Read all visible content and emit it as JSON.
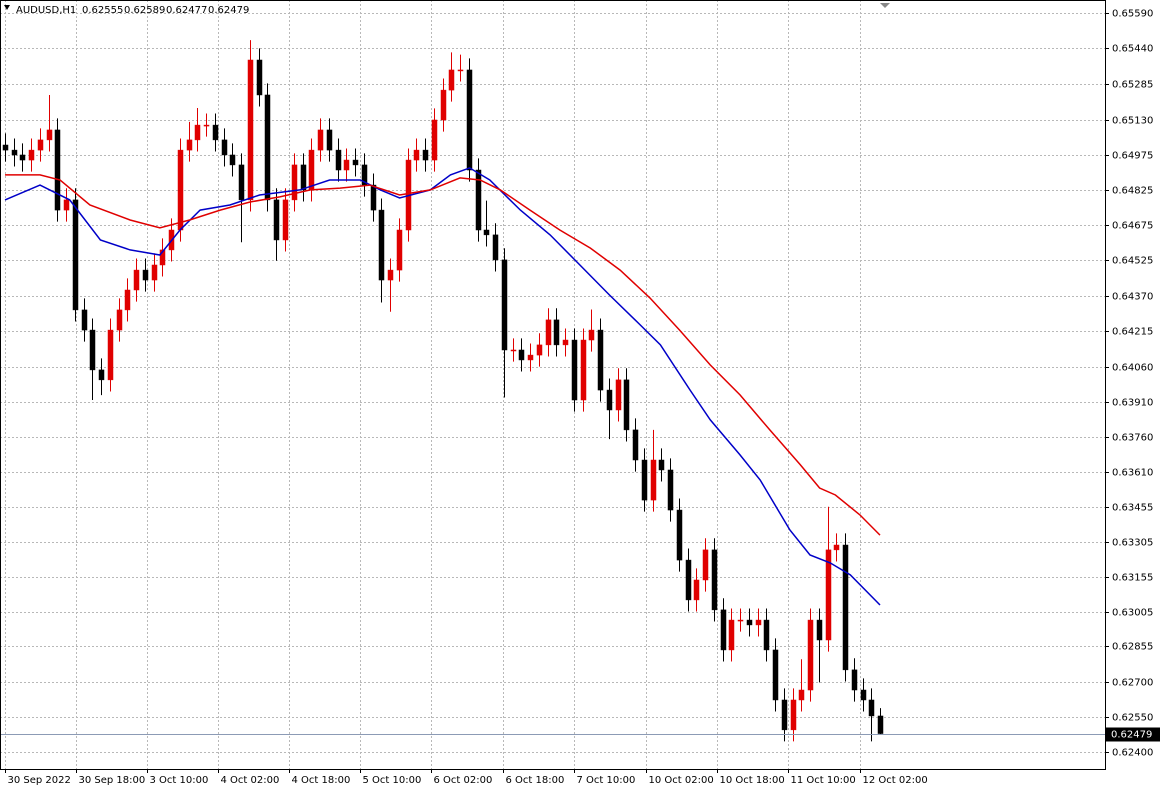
{
  "chart_data": {
    "type": "candlestick",
    "symbol": "AUDUSD,H1",
    "up_color": "#e00000",
    "down_color": "#000000",
    "grid": true,
    "xlim": [
      -0.57,
      125.71
    ],
    "xticks": [
      {
        "value": 0,
        "label": "30 Sep 2022"
      },
      {
        "value": 8.1,
        "label": "30 Sep 18:00"
      },
      {
        "value": 16.2,
        "label": "3 Oct 10:00"
      },
      {
        "value": 24.3,
        "label": "4 Oct 02:00"
      },
      {
        "value": 32.5,
        "label": "4 Oct 18:00"
      },
      {
        "value": 40.6,
        "label": "5 Oct 10:00"
      },
      {
        "value": 48.7,
        "label": "6 Oct 02:00"
      },
      {
        "value": 56.9,
        "label": "6 Oct 18:00"
      },
      {
        "value": 65,
        "label": "7 Oct 10:00"
      },
      {
        "value": 73.3,
        "label": "10 Oct 02:00"
      },
      {
        "value": 81.4,
        "label": "10 Oct 18:00"
      },
      {
        "value": 89.5,
        "label": "11 Oct 10:00"
      },
      {
        "value": 97.7,
        "label": "12 Oct 02:00"
      }
    ],
    "ylim": [
      0.62326,
      0.65646
    ],
    "yticks": [
      {
        "value": 0.6559,
        "label": "0.65590"
      },
      {
        "value": 0.6544,
        "label": "0.65440"
      },
      0.65285,
      {
        "value": 0.6513,
        "label": "0.65130"
      },
      0.64975,
      0.64825,
      0.64675,
      0.64525,
      {
        "value": 0.6437,
        "label": "0.64370"
      },
      0.64215,
      {
        "value": 0.6406,
        "label": "0.64060"
      },
      {
        "value": 0.6391,
        "label": "0.63910"
      },
      {
        "value": 0.6376,
        "label": "0.63760"
      },
      {
        "value": 0.6361,
        "label": "0.63610"
      },
      0.63455,
      0.63305,
      0.63155,
      0.63005,
      0.62855,
      {
        "value": 0.627,
        "label": "0.62700"
      },
      {
        "value": 0.6255,
        "label": "0.62550"
      },
      {
        "value": 0.624,
        "label": "0.62400"
      }
    ],
    "candles": {
      "open": [
        0.6502,
        0.64998,
        0.64977,
        0.64955,
        0.64998,
        0.65042,
        0.65085,
        0.64739,
        0.64783,
        0.64308,
        0.64221,
        0.64049,
        0.64006,
        0.64221,
        0.64308,
        0.64394,
        0.6448,
        0.64437,
        0.64502,
        0.64567,
        0.64653,
        0.64998,
        0.65042,
        0.65106,
        0.65106,
        0.65042,
        0.64977,
        0.64934,
        0.64783,
        0.65387,
        0.65236,
        0.64783,
        0.6461,
        0.64783,
        0.64934,
        0.64826,
        0.64998,
        0.65085,
        0.64998,
        0.64912,
        0.64955,
        0.64934,
        0.64847,
        0.64739,
        0.64437,
        0.6448,
        0.64653,
        0.64955,
        0.64998,
        0.64955,
        0.65128,
        0.65257,
        0.65344,
        0.65344,
        0.64912,
        0.64653,
        0.64632,
        0.64524,
        0.64135,
        0.64135,
        0.64092,
        0.64113,
        0.64157,
        0.64265,
        0.64157,
        0.64178,
        0.63919,
        0.64178,
        0.64221,
        0.63962,
        0.63876,
        0.64006,
        0.6379,
        0.6366,
        0.63487,
        0.6366,
        0.63617,
        0.63444,
        0.63228,
        0.63056,
        0.63142,
        0.63272,
        0.63013,
        0.6284,
        0.62969,
        0.62969,
        0.62948,
        0.62969,
        0.6284,
        0.62624,
        0.62495,
        0.62624,
        0.62667,
        0.62969,
        0.62883,
        0.63272,
        0.63293,
        0.62754,
        0.62667,
        0.62624,
        0.62555
      ],
      "high": [
        0.6507,
        0.65048,
        0.65027,
        0.65048,
        0.65092,
        0.65236,
        0.65135,
        0.64833,
        0.64833,
        0.64358,
        0.64271,
        0.64099,
        0.64271,
        0.64358,
        0.64444,
        0.6453,
        0.6453,
        0.64552,
        0.64617,
        0.64703,
        0.65048,
        0.6512,
        0.6518,
        0.65156,
        0.65156,
        0.65092,
        0.65027,
        0.64984,
        0.65473,
        0.65437,
        0.65286,
        0.64833,
        0.64833,
        0.64984,
        0.64984,
        0.65048,
        0.65135,
        0.65135,
        0.65048,
        0.65005,
        0.65005,
        0.64984,
        0.64897,
        0.64789,
        0.6453,
        0.64703,
        0.65005,
        0.65048,
        0.65048,
        0.65178,
        0.65307,
        0.6542,
        0.6541,
        0.65394,
        0.64962,
        0.6478,
        0.64682,
        0.64574,
        0.64185,
        0.64185,
        0.64163,
        0.64207,
        0.64315,
        0.64315,
        0.64228,
        0.64228,
        0.64228,
        0.6431,
        0.64271,
        0.64012,
        0.64056,
        0.64056,
        0.6384,
        0.6371,
        0.6379,
        0.6371,
        0.63667,
        0.63494,
        0.63278,
        0.63192,
        0.63322,
        0.63322,
        0.63063,
        0.63019,
        0.63019,
        0.63019,
        0.63019,
        0.63019,
        0.6289,
        0.62674,
        0.62674,
        0.628,
        0.63019,
        0.63019,
        0.63458,
        0.63343,
        0.63343,
        0.62804,
        0.62717,
        0.62674,
        0.62589
      ],
      "low": [
        0.64948,
        0.64927,
        0.64905,
        0.64905,
        0.64948,
        0.64992,
        0.64689,
        0.64689,
        0.64258,
        0.64171,
        0.63919,
        0.6394,
        0.63956,
        0.64171,
        0.64258,
        0.64344,
        0.64387,
        0.64387,
        0.64452,
        0.64517,
        0.64603,
        0.64948,
        0.64992,
        0.65056,
        0.64992,
        0.64927,
        0.64884,
        0.646,
        0.64733,
        0.65186,
        0.64733,
        0.6452,
        0.6456,
        0.64733,
        0.64776,
        0.64776,
        0.64948,
        0.64948,
        0.64862,
        0.64862,
        0.64884,
        0.64797,
        0.64689,
        0.6434,
        0.643,
        0.6443,
        0.64603,
        0.64905,
        0.64905,
        0.64905,
        0.65078,
        0.65207,
        0.65294,
        0.64862,
        0.64603,
        0.64582,
        0.64474,
        0.6393,
        0.64085,
        0.64042,
        0.64042,
        0.64063,
        0.64107,
        0.64107,
        0.64107,
        0.63869,
        0.63869,
        0.64128,
        0.63912,
        0.6375,
        0.63826,
        0.6374,
        0.6361,
        0.63437,
        0.63437,
        0.63567,
        0.63394,
        0.63178,
        0.63006,
        0.63006,
        0.63092,
        0.62963,
        0.6279,
        0.6279,
        0.62919,
        0.62898,
        0.62898,
        0.6279,
        0.62574,
        0.62445,
        0.62445,
        0.62574,
        0.62617,
        0.627,
        0.62833,
        0.63222,
        0.62704,
        0.62617,
        0.62574,
        0.62445,
        0.62477
      ],
      "close": [
        0.64998,
        0.64977,
        0.64955,
        0.64998,
        0.65042,
        0.65085,
        0.64739,
        0.64783,
        0.64308,
        0.64221,
        0.64049,
        0.64006,
        0.64221,
        0.64308,
        0.64394,
        0.6448,
        0.64437,
        0.64502,
        0.64567,
        0.64653,
        0.64998,
        0.65042,
        0.65106,
        0.65106,
        0.65042,
        0.64977,
        0.64934,
        0.64783,
        0.65387,
        0.65236,
        0.64783,
        0.6461,
        0.64783,
        0.64934,
        0.64826,
        0.64998,
        0.65085,
        0.64998,
        0.64912,
        0.64955,
        0.64934,
        0.64847,
        0.64739,
        0.64437,
        0.6448,
        0.64653,
        0.64955,
        0.64998,
        0.64955,
        0.65128,
        0.65257,
        0.65344,
        0.65344,
        0.64912,
        0.64653,
        0.64632,
        0.64524,
        0.64135,
        0.64135,
        0.64092,
        0.64113,
        0.64157,
        0.64265,
        0.64157,
        0.64178,
        0.63919,
        0.64178,
        0.64221,
        0.63962,
        0.63876,
        0.64006,
        0.6379,
        0.6366,
        0.63487,
        0.6366,
        0.63617,
        0.63444,
        0.63228,
        0.63056,
        0.63142,
        0.63272,
        0.63013,
        0.6284,
        0.62969,
        0.62969,
        0.62948,
        0.62969,
        0.6284,
        0.62624,
        0.62495,
        0.62624,
        0.62667,
        0.62969,
        0.62883,
        0.63272,
        0.63293,
        0.62754,
        0.62667,
        0.62624,
        0.62555,
        0.62479
      ]
    },
    "series": [
      {
        "color": "#0000c8",
        "x": [
          0,
          4,
          7.4,
          10.9,
          14.3,
          17.7,
          20,
          22.3,
          25.7,
          29.1,
          33.7,
          37.1,
          40.6,
          42.9,
          45.1,
          48.6,
          50.9,
          53.1,
          55.4,
          58.9,
          62.3,
          65.7,
          69.1,
          72.6,
          74.9,
          78.3,
          80.6,
          84,
          86.3,
          89.7,
          92,
          94.3,
          96.6,
          100
        ],
        "values": [
          0.64783,
          0.64847,
          0.64783,
          0.6461,
          0.64567,
          0.64545,
          0.64653,
          0.64739,
          0.64761,
          0.64804,
          0.64826,
          0.64869,
          0.64869,
          0.64826,
          0.64791,
          0.64826,
          0.64891,
          0.64921,
          0.64869,
          0.64739,
          0.64632,
          0.64502,
          0.64372,
          0.64243,
          0.64157,
          0.63962,
          0.63833,
          0.63682,
          0.63574,
          0.63358,
          0.6325,
          0.63216,
          0.63164,
          0.63034
        ]
      },
      {
        "color": "#e00000",
        "x": [
          0,
          4,
          6.3,
          9.7,
          14.3,
          17.7,
          21.1,
          24.6,
          28,
          31.4,
          34.9,
          38.3,
          41.7,
          45.1,
          48.6,
          52,
          54.3,
          56.6,
          60,
          63.4,
          66.9,
          70.3,
          73.7,
          77.1,
          80.6,
          84,
          87.4,
          90.9,
          93.1,
          94.9,
          97.7,
          100
        ],
        "values": [
          0.64891,
          0.64891,
          0.64869,
          0.64761,
          0.64696,
          0.64662,
          0.64696,
          0.64739,
          0.64774,
          0.64796,
          0.64826,
          0.64834,
          0.64847,
          0.64804,
          0.64826,
          0.64878,
          0.64869,
          0.64826,
          0.64739,
          0.64653,
          0.64575,
          0.6448,
          0.6436,
          0.64221,
          0.6407,
          0.63941,
          0.6379,
          0.63639,
          0.63539,
          0.63509,
          0.63423,
          0.63336
        ]
      }
    ]
  }
}
